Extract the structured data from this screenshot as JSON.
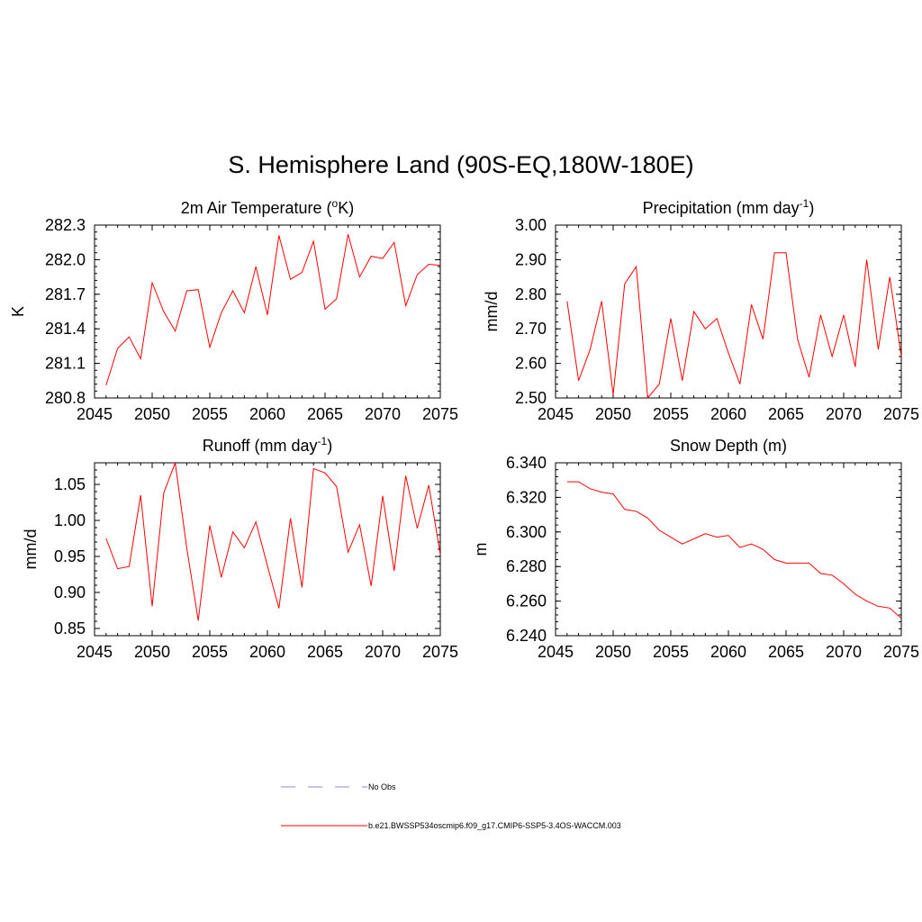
{
  "title": "S. Hemisphere Land (90S-EQ,180W-180E)",
  "colors": {
    "series": "#ff0000",
    "obs": "#a0a0e0",
    "axis": "#000000"
  },
  "legend": {
    "obs_label": "No Obs",
    "model_label": "b.e21.BWSSP534oscmip6.f09_g17.CMIP6-SSP5-3.4OS-WACCM.003"
  },
  "chart_data": [
    {
      "type": "line",
      "title_main": "2m Air Temperature (",
      "title_sup": "o",
      "title_rest": "K)",
      "ylabel": "K",
      "xlim": [
        2045,
        2075
      ],
      "ylim": [
        280.8,
        282.3
      ],
      "xticks": [
        2045,
        2050,
        2055,
        2060,
        2065,
        2070,
        2075
      ],
      "xtick_labels": [
        "2045",
        "2050",
        "2055",
        "2060",
        "2065",
        "2070",
        "2075"
      ],
      "yticks": [
        280.8,
        281.1,
        281.4,
        281.7,
        282.0,
        282.3
      ],
      "ytick_labels": [
        "280.8",
        "281.1",
        "281.4",
        "281.7",
        "282.0",
        "282.3"
      ],
      "x": [
        2046,
        2047,
        2048,
        2049,
        2050,
        2051,
        2052,
        2053,
        2054,
        2055,
        2056,
        2057,
        2058,
        2059,
        2060,
        2061,
        2062,
        2063,
        2064,
        2065,
        2066,
        2067,
        2068,
        2069,
        2070,
        2071,
        2072,
        2073,
        2074,
        2075
      ],
      "y": [
        280.91,
        281.23,
        281.33,
        281.14,
        281.8,
        281.55,
        281.38,
        281.73,
        281.74,
        281.24,
        281.54,
        281.73,
        281.54,
        281.94,
        281.52,
        282.21,
        281.83,
        281.89,
        282.16,
        281.57,
        281.66,
        282.22,
        281.85,
        282.03,
        282.01,
        282.15,
        281.6,
        281.87,
        281.96,
        281.95
      ]
    },
    {
      "type": "line",
      "title_main": "Precipitation (mm day",
      "title_sup": "-1",
      "title_rest": ")",
      "ylabel": "mm/d",
      "xlim": [
        2045,
        2075
      ],
      "ylim": [
        2.5,
        3.0
      ],
      "xticks": [
        2045,
        2050,
        2055,
        2060,
        2065,
        2070,
        2075
      ],
      "xtick_labels": [
        "2045",
        "2050",
        "2055",
        "2060",
        "2065",
        "2070",
        "2075"
      ],
      "yticks": [
        2.5,
        2.6,
        2.7,
        2.8,
        2.9,
        3.0
      ],
      "ytick_labels": [
        "2.50",
        "2.60",
        "2.70",
        "2.80",
        "2.90",
        "3.00"
      ],
      "x": [
        2046,
        2047,
        2048,
        2049,
        2050,
        2051,
        2052,
        2053,
        2054,
        2055,
        2056,
        2057,
        2058,
        2059,
        2060,
        2061,
        2062,
        2063,
        2064,
        2065,
        2066,
        2067,
        2068,
        2069,
        2070,
        2071,
        2072,
        2073,
        2074,
        2075
      ],
      "y": [
        2.78,
        2.55,
        2.64,
        2.78,
        2.51,
        2.83,
        2.88,
        2.5,
        2.54,
        2.73,
        2.55,
        2.75,
        2.7,
        2.73,
        2.63,
        2.54,
        2.77,
        2.67,
        2.92,
        2.92,
        2.67,
        2.56,
        2.74,
        2.62,
        2.74,
        2.59,
        2.9,
        2.64,
        2.85,
        2.62
      ]
    },
    {
      "type": "line",
      "title_main": "Runoff (mm day",
      "title_sup": "-1",
      "title_rest": ")",
      "ylabel": "mm/d",
      "xlim": [
        2045,
        2075
      ],
      "ylim": [
        0.84,
        1.08
      ],
      "xticks": [
        2045,
        2050,
        2055,
        2060,
        2065,
        2070,
        2075
      ],
      "xtick_labels": [
        "2045",
        "2050",
        "2055",
        "2060",
        "2065",
        "2070",
        "2075"
      ],
      "yticks": [
        0.85,
        0.9,
        0.95,
        1.0,
        1.05
      ],
      "ytick_labels": [
        "0.85",
        "0.90",
        "0.95",
        "1.00",
        "1.05"
      ],
      "x": [
        2046,
        2047,
        2048,
        2049,
        2050,
        2051,
        2052,
        2053,
        2054,
        2055,
        2056,
        2057,
        2058,
        2059,
        2060,
        2061,
        2062,
        2063,
        2064,
        2065,
        2066,
        2067,
        2068,
        2069,
        2070,
        2071,
        2072,
        2073,
        2074,
        2075
      ],
      "y": [
        0.975,
        0.933,
        0.936,
        1.035,
        0.881,
        1.038,
        1.08,
        0.962,
        0.861,
        0.993,
        0.921,
        0.984,
        0.962,
        0.998,
        0.937,
        0.878,
        1.003,
        0.907,
        1.072,
        1.066,
        1.047,
        0.956,
        0.994,
        0.909,
        1.034,
        0.93,
        1.062,
        0.989,
        1.049,
        0.953
      ]
    },
    {
      "type": "line",
      "title_main": "Snow Depth (m)",
      "title_sup": "",
      "title_rest": "",
      "ylabel": "m",
      "xlim": [
        2045,
        2075
      ],
      "ylim": [
        6.24,
        6.34
      ],
      "xticks": [
        2045,
        2050,
        2055,
        2060,
        2065,
        2070,
        2075
      ],
      "xtick_labels": [
        "2045",
        "2050",
        "2055",
        "2060",
        "2065",
        "2070",
        "2075"
      ],
      "yticks": [
        6.24,
        6.26,
        6.28,
        6.3,
        6.32,
        6.34
      ],
      "ytick_labels": [
        "6.240",
        "6.260",
        "6.280",
        "6.300",
        "6.320",
        "6.340"
      ],
      "x": [
        2046,
        2047,
        2048,
        2049,
        2050,
        2051,
        2052,
        2053,
        2054,
        2055,
        2056,
        2057,
        2058,
        2059,
        2060,
        2061,
        2062,
        2063,
        2064,
        2065,
        2066,
        2067,
        2068,
        2069,
        2070,
        2071,
        2072,
        2073,
        2074,
        2075
      ],
      "y": [
        6.329,
        6.329,
        6.325,
        6.323,
        6.322,
        6.313,
        6.312,
        6.308,
        6.301,
        6.297,
        6.293,
        6.296,
        6.299,
        6.297,
        6.298,
        6.291,
        6.293,
        6.29,
        6.284,
        6.282,
        6.282,
        6.282,
        6.276,
        6.275,
        6.27,
        6.264,
        6.26,
        6.257,
        6.256,
        6.25
      ]
    }
  ]
}
